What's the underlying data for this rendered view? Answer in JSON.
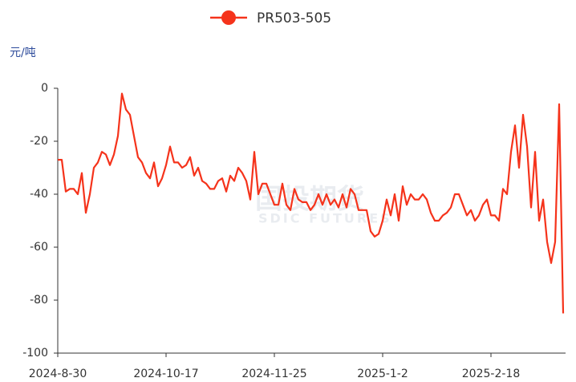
{
  "chart_data": {
    "type": "line",
    "y_label": "元/吨",
    "watermark": [
      "国投期货",
      "SDIC FUTURES"
    ],
    "categories": [
      "2024-8-30",
      null,
      null,
      null,
      null,
      null,
      null,
      null,
      null,
      null,
      null,
      null,
      null,
      null,
      null,
      null,
      null,
      null,
      null,
      null,
      null,
      null,
      null,
      null,
      null,
      null,
      null,
      "2024-10-17",
      null,
      null,
      null,
      null,
      null,
      null,
      null,
      null,
      null,
      null,
      null,
      null,
      null,
      null,
      null,
      null,
      null,
      null,
      null,
      null,
      null,
      null,
      null,
      null,
      null,
      null,
      "2024-11-25",
      null,
      null,
      null,
      null,
      null,
      null,
      null,
      null,
      null,
      null,
      null,
      null,
      null,
      null,
      null,
      null,
      null,
      null,
      null,
      null,
      null,
      null,
      null,
      null,
      null,
      null,
      "2025-1-2",
      null,
      null,
      null,
      null,
      null,
      null,
      null,
      null,
      null,
      null,
      null,
      null,
      null,
      null,
      null,
      null,
      null,
      null,
      null,
      null,
      null,
      null,
      null,
      null,
      null,
      null,
      "2025-2-18",
      null,
      null,
      null,
      null,
      null,
      null,
      null,
      null,
      null,
      null,
      null,
      null,
      null,
      null,
      null,
      null,
      null,
      null
    ],
    "series": [
      {
        "name": "PR503-505",
        "color": "#f5331b",
        "values": [
          -27,
          -27,
          -39,
          -38,
          -38,
          -40,
          -32,
          -47,
          -40,
          -30,
          -28,
          -24,
          -25,
          -29,
          -25,
          -18,
          -2,
          -8,
          -10,
          -18,
          -26,
          -28,
          -32,
          -34,
          -28,
          -37,
          -34,
          -29,
          -22,
          -28,
          -28,
          -30,
          -29,
          -26,
          -33,
          -30,
          -35,
          -36,
          -38,
          -38,
          -35,
          -34,
          -39,
          -33,
          -35,
          -30,
          -32,
          -35,
          -42,
          -24,
          -40,
          -36,
          -36,
          -40,
          -44,
          -44,
          -36,
          -44,
          -46,
          -38,
          -42,
          -43,
          -43,
          -46,
          -44,
          -40,
          -44,
          -40,
          -44,
          -42,
          -45,
          -40,
          -45,
          -38,
          -40,
          -46,
          -46,
          -46,
          -54,
          -56,
          -55,
          -50,
          -42,
          -48,
          -40,
          -50,
          -37,
          -44,
          -40,
          -42,
          -42,
          -40,
          -42,
          -47,
          -50,
          -50,
          -48,
          -47,
          -45,
          -40,
          -40,
          -44,
          -48,
          -46,
          -50,
          -48,
          -44,
          -42,
          -48,
          -48,
          -50,
          -38,
          -40,
          -24,
          -14,
          -30,
          -10,
          -22,
          -45,
          -24,
          -50,
          -42,
          -58,
          -66,
          -58,
          -6,
          -85
        ]
      }
    ],
    "ylim": [
      -100,
      0
    ],
    "yticks": [
      0,
      -20,
      -40,
      -60,
      -80,
      -100
    ],
    "legend": "top"
  }
}
